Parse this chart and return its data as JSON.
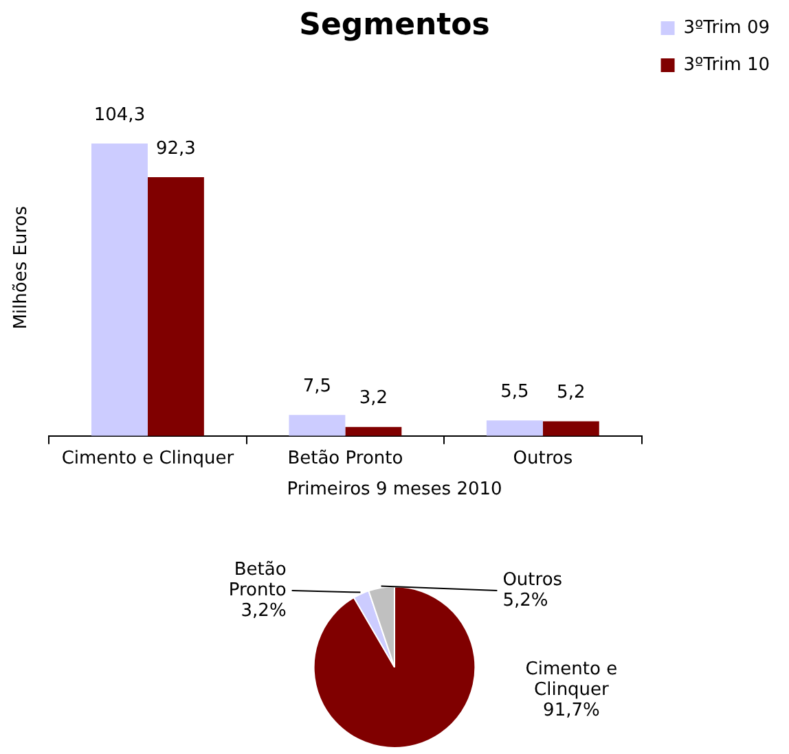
{
  "chart_data": [
    {
      "type": "bar",
      "title": "Segmentos",
      "ylabel": "Milhões Euros",
      "categories": [
        "Cimento e Clinquer",
        "Betão Pronto",
        "Outros"
      ],
      "series": [
        {
          "name": "3ºTrim 09",
          "color": "#ccccff",
          "values": [
            104.3,
            7.5,
            5.5
          ],
          "value_labels": [
            "104,3",
            "7,5",
            "5,5"
          ]
        },
        {
          "name": "3ºTrim 10",
          "color": "#800000",
          "values": [
            92.3,
            3.2,
            5.2
          ],
          "value_labels": [
            "92,3",
            "3,2",
            "5,2"
          ]
        }
      ],
      "tick_labels": "x",
      "grid": false,
      "legend": "top right"
    },
    {
      "type": "pie",
      "title": "Primeiros 9 meses 2010",
      "categories": [
        "Cimento e Clinquer",
        "Betão Pronto",
        "Outros"
      ],
      "values": [
        91.7,
        3.2,
        5.2
      ],
      "value_labels": [
        "91,7%",
        "3,2%",
        "5,2%"
      ],
      "colors": [
        "#800000",
        "#ccccff",
        "#c0c0c0"
      ],
      "legend": false
    }
  ]
}
